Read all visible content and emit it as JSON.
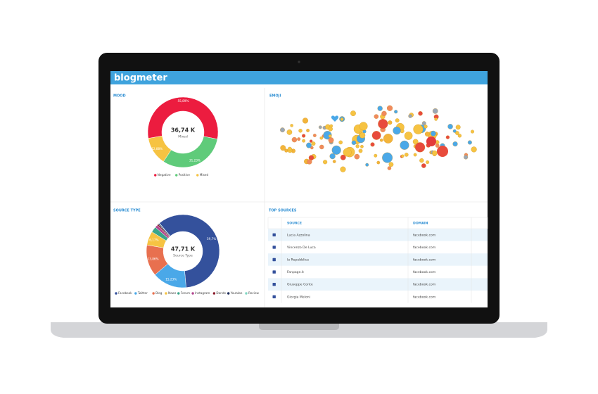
{
  "header": {
    "logo": "blogmeter"
  },
  "mood": {
    "type": "pie",
    "title": "MOOD",
    "center_value": "36,74 K",
    "center_label": "Mixed",
    "categories": [
      "Negative",
      "Positive",
      "Mixed"
    ],
    "values": [
      55.89,
      31.23,
      12.88
    ],
    "value_labels": [
      "55,89%",
      "31,23%",
      "12,88%"
    ],
    "colors": [
      "#ec1c3f",
      "#5fcb7a",
      "#f6c342"
    ]
  },
  "emoji": {
    "title": "EMOJI"
  },
  "source_type": {
    "type": "pie",
    "title": "SOURCE TYPE",
    "center_value": "47,71 K",
    "center_label": "Source Type",
    "categories": [
      "Facebook",
      "Twitter",
      "Blog",
      "News",
      "Forum",
      "Instagram",
      "Dande",
      "Youtube",
      "Review"
    ],
    "values": [
      59.7,
      15.23,
      13.86,
      6.17,
      2.5,
      1.2,
      0.6,
      0.5,
      0.2
    ],
    "value_labels": [
      "59,7%",
      "15,23%",
      "13,86%",
      "6,17%",
      null,
      null,
      null,
      null,
      null
    ],
    "colors": [
      "#34519c",
      "#4aa8e8",
      "#e8704f",
      "#f6c342",
      "#3aa58a",
      "#b2458f",
      "#8a1c2c",
      "#1f2f5c",
      "#7fd6c2"
    ]
  },
  "top_sources": {
    "title": "TOP SOURCES",
    "columns": [
      "SOURCE",
      "DOMAIN"
    ],
    "rows": [
      [
        "Lucia Azzolina",
        "facebook.com"
      ],
      [
        "Vincenzo De Luca",
        "facebook.com"
      ],
      [
        "la Repubblica",
        "facebook.com"
      ],
      [
        "Fanpage.it",
        "facebook.com"
      ],
      [
        "Giuseppe Conte",
        "facebook.com"
      ],
      [
        "Giorgia Meloni",
        "facebook.com"
      ]
    ]
  }
}
